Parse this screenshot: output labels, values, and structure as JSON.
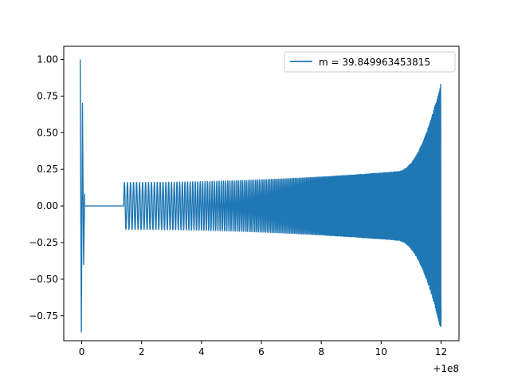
{
  "chart_data": {
    "type": "line",
    "x_offset_label": "+1e8",
    "xlim": [
      -0.6,
      12.6
    ],
    "ylim": [
      -0.92,
      1.09
    ],
    "x_ticks": [
      0,
      2,
      4,
      6,
      8,
      10,
      12
    ],
    "x_tick_labels": [
      "0",
      "2",
      "4",
      "6",
      "8",
      "10",
      "12"
    ],
    "y_ticks": [
      -0.75,
      -0.5,
      -0.25,
      0.0,
      0.25,
      0.5,
      0.75,
      1.0
    ],
    "y_tick_labels": [
      "−0.75",
      "−0.50",
      "−0.25",
      "0.00",
      "0.25",
      "0.50",
      "0.75",
      "1.00"
    ],
    "grid": false,
    "legend_position": "top-right",
    "series": [
      {
        "name": "m = 39.849963453815",
        "color": "#1f77b4",
        "segments": [
          {
            "kind": "burst",
            "x": [
              -0.05,
              0.1
            ],
            "peaks": [
              1.0,
              -0.86,
              0.7,
              -0.4,
              0.08
            ]
          },
          {
            "kind": "flat",
            "x": [
              0.1,
              1.4
            ],
            "value": 0.0
          },
          {
            "kind": "chirp",
            "x": [
              1.4,
              12.0
            ],
            "amplitude_start": 0.16,
            "amplitude_end": 0.85,
            "amplitude_min_end": -0.82,
            "cycles": 230
          }
        ]
      }
    ]
  }
}
